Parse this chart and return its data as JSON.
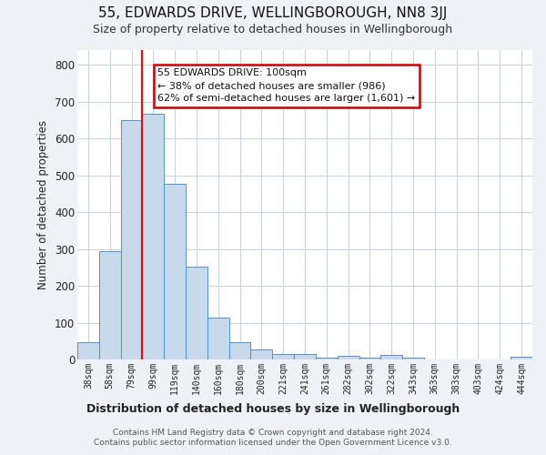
{
  "title": "55, EDWARDS DRIVE, WELLINGBOROUGH, NN8 3JJ",
  "subtitle": "Size of property relative to detached houses in Wellingborough",
  "xlabel": "Distribution of detached houses by size in Wellingborough",
  "ylabel": "Number of detached properties",
  "bar_labels": [
    "38sqm",
    "58sqm",
    "79sqm",
    "99sqm",
    "119sqm",
    "140sqm",
    "160sqm",
    "180sqm",
    "200sqm",
    "221sqm",
    "241sqm",
    "261sqm",
    "282sqm",
    "302sqm",
    "322sqm",
    "343sqm",
    "363sqm",
    "383sqm",
    "403sqm",
    "424sqm",
    "444sqm"
  ],
  "bar_heights": [
    48,
    293,
    650,
    668,
    478,
    252,
    114,
    48,
    28,
    15,
    15,
    5,
    10,
    5,
    13,
    5,
    0,
    0,
    0,
    0,
    8
  ],
  "bar_color": "#c9d9ec",
  "bar_edge_color": "#5a8fc3",
  "ylim": [
    0,
    840
  ],
  "yticks": [
    0,
    100,
    200,
    300,
    400,
    500,
    600,
    700,
    800
  ],
  "red_line_index": 3,
  "annotation_title": "55 EDWARDS DRIVE: 100sqm",
  "annotation_line1": "← 38% of detached houses are smaller (986)",
  "annotation_line2": "62% of semi-detached houses are larger (1,601) →",
  "annotation_box_color": "#ffffff",
  "annotation_box_edge": "#cc0000",
  "footer1": "Contains HM Land Registry data © Crown copyright and database right 2024.",
  "footer2": "Contains public sector information licensed under the Open Government Licence v3.0.",
  "background_color": "#eef2f7",
  "plot_background": "#ffffff",
  "grid_color": "#c8d4e0",
  "title_fontsize": 11,
  "subtitle_fontsize": 9
}
